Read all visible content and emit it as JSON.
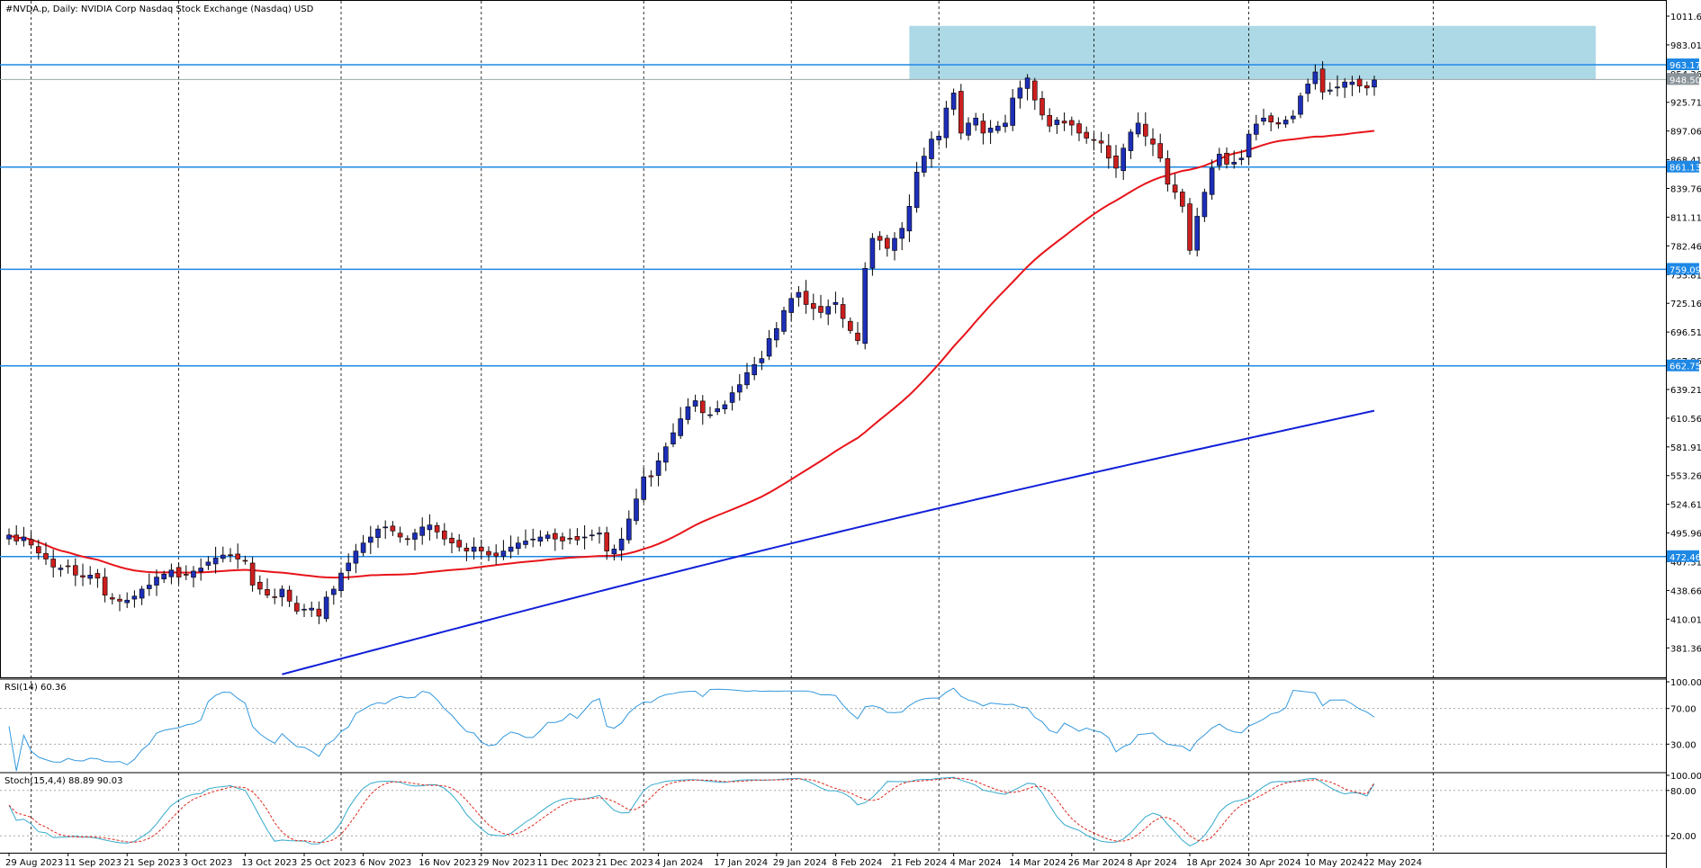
{
  "title": "#NVDA.p, Daily:  NVIDIA Corp Nasdaq Stock Exchange (Nasdaq) USD",
  "colors": {
    "bull": "#1d2fb8",
    "bear": "#cc1f1f",
    "sma_fast": "#e8141a",
    "sma_slow": "#1020d8",
    "level": "#1e88e5",
    "zone": "#add8e6",
    "rsi": "#3399dd",
    "stoch_main": "#33aacc",
    "stoch_signal": "#e0281e"
  },
  "chart_data": {
    "type": "candlestick",
    "title": "#NVDA.p, Daily:  NVIDIA Corp Nasdaq Stock Exchange (Nasdaq) USD",
    "price_axis": {
      "range": [
        352.0,
        1026.0
      ],
      "ticks": [
        "1011.66",
        "983.01",
        "954.36",
        "925.71",
        "897.06",
        "868.41",
        "839.76",
        "811.11",
        "782.46",
        "753.81",
        "725.16",
        "696.51",
        "667.86",
        "639.21",
        "610.56",
        "581.91",
        "553.26",
        "524.61",
        "495.96",
        "467.31",
        "438.66",
        "410.01",
        "381.36"
      ]
    },
    "date_labels": [
      {
        "label": "29 Aug 2023",
        "index": 0
      },
      {
        "label": "11 Sep 2023",
        "index": 8
      },
      {
        "label": "21 Sep 2023",
        "index": 16
      },
      {
        "label": "3 Oct 2023",
        "index": 24
      },
      {
        "label": "13 Oct 2023",
        "index": 32
      },
      {
        "label": "25 Oct 2023",
        "index": 40
      },
      {
        "label": "6 Nov 2023",
        "index": 48
      },
      {
        "label": "16 Nov 2023",
        "index": 56
      },
      {
        "label": "29 Nov 2023",
        "index": 64
      },
      {
        "label": "11 Dec 2023",
        "index": 72
      },
      {
        "label": "21 Dec 2023",
        "index": 80
      },
      {
        "label": "4 Jan 2024",
        "index": 88
      },
      {
        "label": "17 Jan 2024",
        "index": 96
      },
      {
        "label": "29 Jan 2024",
        "index": 104
      },
      {
        "label": "8 Feb 2024",
        "index": 112
      },
      {
        "label": "21 Feb 2024",
        "index": 120
      },
      {
        "label": "4 Mar 2024",
        "index": 128
      },
      {
        "label": "14 Mar 2024",
        "index": 136
      },
      {
        "label": "26 Mar 2024",
        "index": 144
      },
      {
        "label": "8 Apr 2024",
        "index": 152
      },
      {
        "label": "18 Apr 2024",
        "index": 160
      },
      {
        "label": "30 Apr 2024",
        "index": 168
      },
      {
        "label": "10 May 2024",
        "index": 176
      },
      {
        "label": "22 May 2024",
        "index": 184
      }
    ],
    "vertical_grid_indices": [
      3,
      23,
      45,
      64,
      86,
      106,
      126,
      147,
      168,
      193
    ],
    "horizontal_levels": [
      {
        "label": "963.17",
        "value": 963.17
      },
      {
        "label": "861.13",
        "value": 861.13
      },
      {
        "label": "759.09",
        "value": 759.09
      },
      {
        "label": "662.75",
        "value": 662.75
      },
      {
        "label": "472.46",
        "value": 472.46
      }
    ],
    "current_price": {
      "label": "948.50",
      "value": 948.5
    },
    "resistance_zone": {
      "start_index": 122,
      "end_index": 215,
      "low": 948.5,
      "high": 1002.0
    },
    "closes": [
      494,
      488,
      492,
      484,
      476,
      470,
      462,
      461,
      463,
      454,
      452,
      454,
      451,
      434,
      430,
      428,
      429,
      433,
      440,
      444,
      452,
      455,
      459,
      452,
      454,
      458,
      461,
      467,
      471,
      474,
      474,
      470,
      468,
      444,
      440,
      434,
      432,
      440,
      428,
      418,
      420,
      421,
      413,
      432,
      440,
      456,
      466,
      478,
      486,
      492,
      500,
      502,
      498,
      492,
      490,
      496,
      502,
      504,
      497,
      490,
      486,
      482,
      478,
      482,
      478,
      474,
      473,
      478,
      482,
      486,
      488,
      490,
      492,
      494,
      490,
      488,
      490,
      489,
      492,
      494,
      496,
      478,
      480,
      490,
      510,
      530,
      552,
      552,
      568,
      582,
      596,
      610,
      622,
      628,
      616,
      614,
      620,
      624,
      636,
      644,
      656,
      664,
      670,
      690,
      700,
      718,
      730,
      736,
      724,
      720,
      716,
      722,
      726,
      710,
      698,
      688,
      760,
      790,
      788,
      780,
      790,
      800,
      822,
      856,
      872,
      889,
      892,
      920,
      935,
      895,
      905,
      910,
      895,
      900,
      902,
      905,
      930,
      940,
      950,
      928,
      913,
      902,
      908,
      905,
      903,
      895,
      890,
      888,
      885,
      870,
      860,
      880,
      896,
      905,
      892,
      884,
      870,
      844,
      836,
      822,
      778,
      812,
      836,
      860,
      874,
      864,
      866,
      870,
      894,
      904,
      910,
      906,
      904,
      908,
      912,
      932,
      944,
      956,
      936,
      938,
      941,
      946,
      946,
      942,
      940,
      948
    ]
  },
  "rsi": {
    "label": "RSI(14) 60.36",
    "ticks": [
      "100.00",
      "70.00",
      "30.00"
    ],
    "levels": [
      70,
      30
    ],
    "current": 60.36
  },
  "stoch": {
    "label": "Stoch(15,4,4) 88.89 90.03",
    "ticks": [
      "100.00",
      "80.00",
      "20.00"
    ],
    "levels": [
      80,
      20
    ],
    "main_current": 88.89,
    "signal_current": 90.03
  }
}
